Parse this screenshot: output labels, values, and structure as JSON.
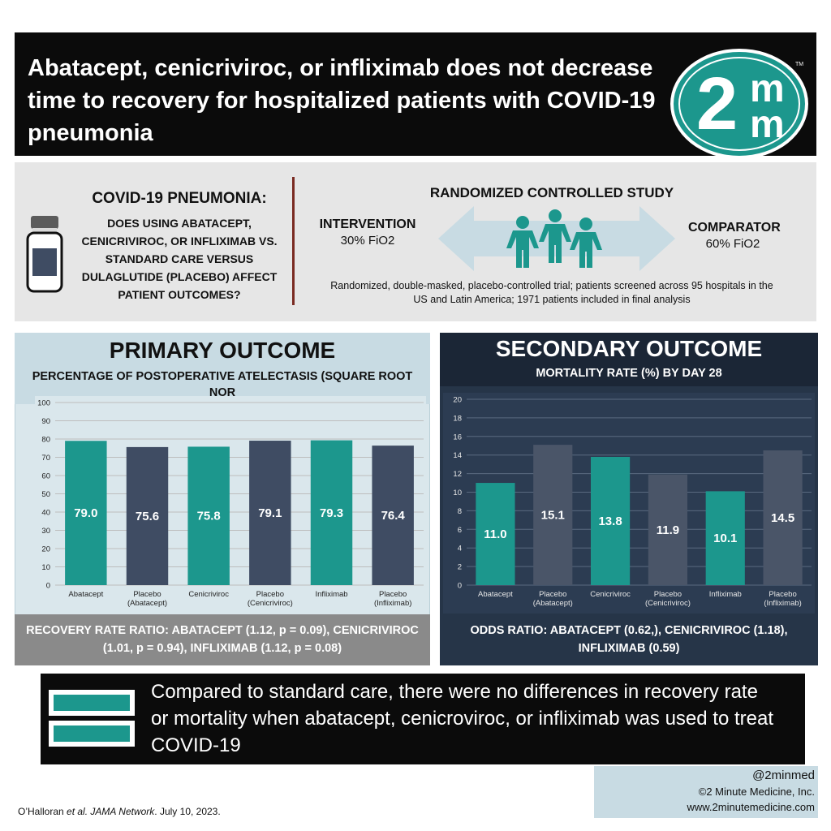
{
  "header": {
    "title": "Abatacept, cenicriviroc, or infliximab does not decrease time to recovery for hospitalized patients with COVID-19 pneumonia",
    "logo": {
      "digit": "2",
      "m_top": "m",
      "m_bottom": "m",
      "trademark": "TM"
    }
  },
  "question": {
    "title": "COVID-19 PNEUMONIA:",
    "body": "DOES USING ABATACEPT, CENICRIVIROC, OR INFLIXIMAB VS. STANDARD CARE VERSUS DULAGLUTIDE (PLACEBO) AFFECT PATIENT OUTCOMES?",
    "icon": "medicine-bottle-icon"
  },
  "study": {
    "title": "RANDOMIZED CONTROLLED STUDY",
    "intervention_label": "INTERVENTION",
    "intervention_value": "30% FiO2",
    "comparator_label": "COMPARATOR",
    "comparator_value": "60% FiO2",
    "description": "Randomized, double-masked, placebo-controlled trial; patients screened across 95 hospitals in the US and Latin America; 1971 patients included in final analysis",
    "icon": "people-group-icon"
  },
  "primary": {
    "heading": "PRIMARY OUTCOME",
    "subtitle": "PERCENTAGE OF POSTOPERATIVE ATELECTASIS (SQUARE ROOT NOR",
    "footer": "RECOVERY RATE RATIO: ABATACEPT (1.12, p = 0.09), CENICRIVIROC (1.01, p = 0.94), INFLIXIMAB (1.12, p = 0.08)"
  },
  "secondary": {
    "heading": "SECONDARY OUTCOME",
    "subtitle": "MORTALITY RATE (%) BY DAY 28",
    "footer": "ODDS RATIO: ABATACEPT (0.62,), CENICRIVIROC (1.18), INFLIXIMAB (0.59)"
  },
  "chart_data": [
    {
      "type": "bar",
      "title": "PERCENTAGE OF POSTOPERATIVE ATELECTASIS (SQUARE ROOT NOR",
      "categories": [
        [
          "Abatacept"
        ],
        [
          "Placebo",
          "(Abatacept)"
        ],
        [
          "Cenicriviroc"
        ],
        [
          "Placebo",
          "(Cenicriviroc)"
        ],
        [
          "Infliximab"
        ],
        [
          "Placebo",
          "(Infliximab)"
        ]
      ],
      "values": [
        79.0,
        75.6,
        75.8,
        79.1,
        79.3,
        76.4
      ],
      "labels": [
        "79.0",
        "75.6",
        "75.8",
        "79.1",
        "79.3",
        "76.4"
      ],
      "colors": [
        "#1c978d",
        "#3f4c63",
        "#1c978d",
        "#3f4c63",
        "#1c978d",
        "#3f4c63"
      ],
      "ylim": [
        0,
        100
      ],
      "yticks": [
        0,
        10,
        20,
        30,
        40,
        50,
        60,
        70,
        80,
        90,
        100
      ],
      "grid": true,
      "xlabel": "",
      "ylabel": ""
    },
    {
      "type": "bar",
      "title": "MORTALITY RATE (%) BY DAY 28",
      "categories": [
        [
          "Abatacept"
        ],
        [
          "Placebo",
          "(Abatacept)"
        ],
        [
          "Cenicriviroc"
        ],
        [
          "Placebo",
          "(Cenicriviroc)"
        ],
        [
          "Infliximab"
        ],
        [
          "Placebo",
          "(Infliximab)"
        ]
      ],
      "values": [
        11.0,
        15.1,
        13.8,
        11.9,
        10.1,
        14.5
      ],
      "labels": [
        "11.0",
        "15.1",
        "13.8",
        "11.9",
        "10.1",
        "14.5"
      ],
      "colors": [
        "#1c978d",
        "#4a5568",
        "#1c978d",
        "#4a5568",
        "#1c978d",
        "#4a5568"
      ],
      "ylim": [
        0,
        20
      ],
      "yticks": [
        0,
        2,
        4,
        6,
        8,
        10,
        12,
        14,
        16,
        18,
        20
      ],
      "grid": true,
      "xlabel": "",
      "ylabel": ""
    }
  ],
  "conclusion": {
    "text": "Compared to standard care, there were no differences in recovery rate or mortality when abatacept, cenicroviroc, or infliximab was used to treat COVID-19",
    "icon": "summary-bars-icon"
  },
  "footer": {
    "handle": "@2minmed",
    "company": "©2 Minute Medicine, Inc.",
    "website": "www.2minutemedicine.com",
    "citation_prefix": "O’Halloran ",
    "citation_italic": "et al. JAMA Network",
    "citation_suffix": ". July 10, 2023."
  },
  "colors": {
    "teal": "#1c978d",
    "slate": "#3f4c63",
    "navy": "#263548",
    "black": "#0b0b0b",
    "light_blue": "#dae7ec"
  }
}
